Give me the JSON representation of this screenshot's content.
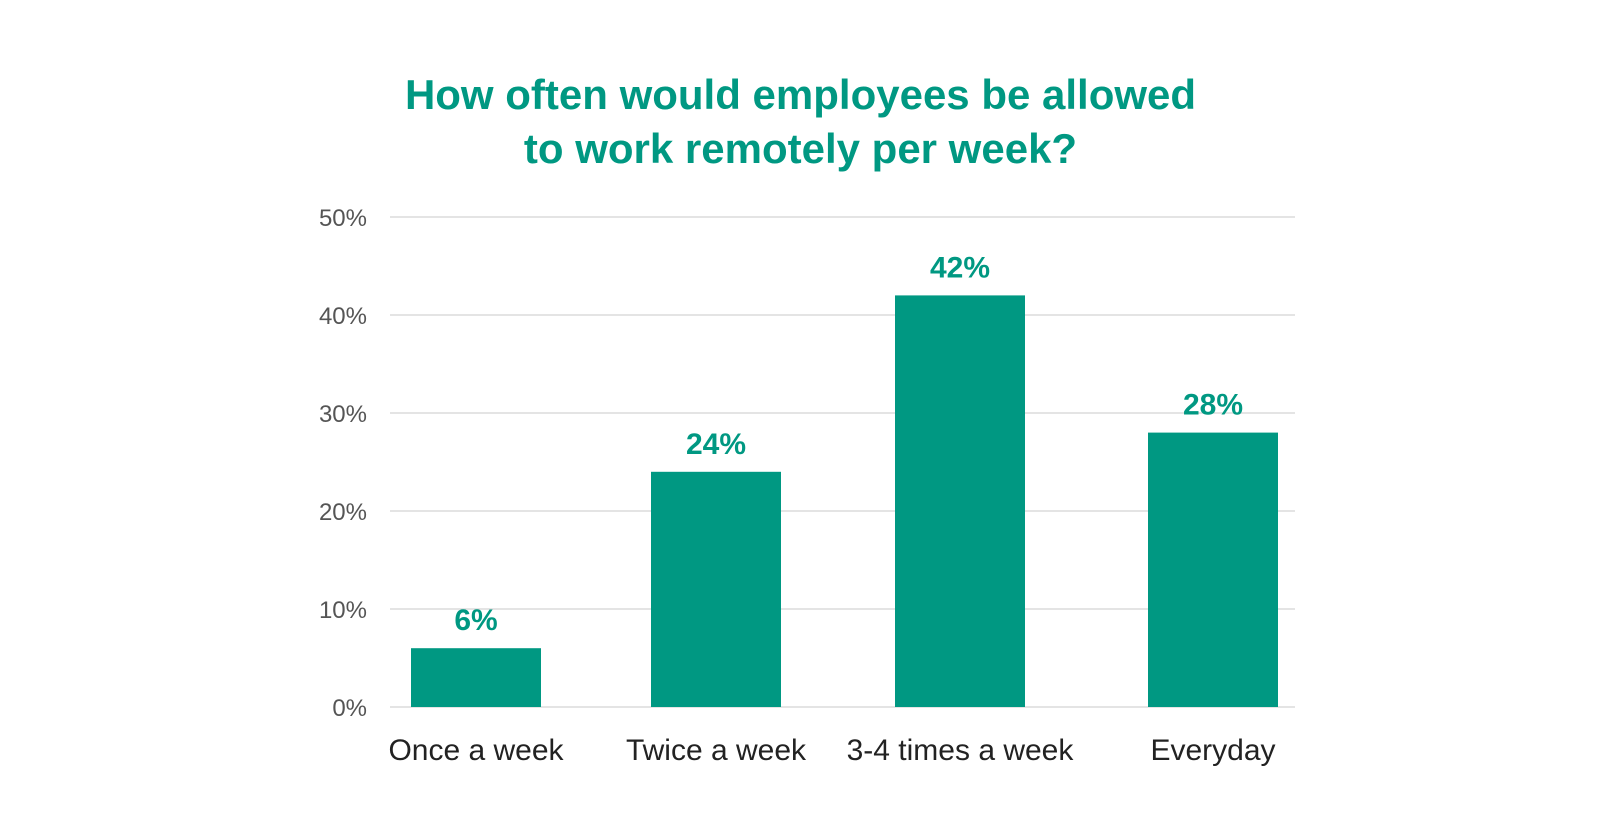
{
  "chart_data": {
    "type": "bar",
    "title_lines": [
      "How often would employees be allowed",
      "to work remotely per week?"
    ],
    "categories": [
      "Once a week",
      "Twice a week",
      "3-4 times a week",
      "Everyday"
    ],
    "values": [
      6,
      24,
      42,
      28
    ],
    "value_labels": [
      "6%",
      "24%",
      "42%",
      "28%"
    ],
    "xlabel": "",
    "ylabel": "",
    "ylim": [
      0,
      50
    ],
    "yticks": [
      0,
      10,
      20,
      30,
      40,
      50
    ],
    "ytick_labels": [
      "0%",
      "10%",
      "20%",
      "30%",
      "40%",
      "50%"
    ],
    "grid": true,
    "legend": "none",
    "colors": {
      "bar": "#009882",
      "title": "#009882",
      "value_label": "#009882",
      "grid": "#d4d4d4"
    }
  }
}
